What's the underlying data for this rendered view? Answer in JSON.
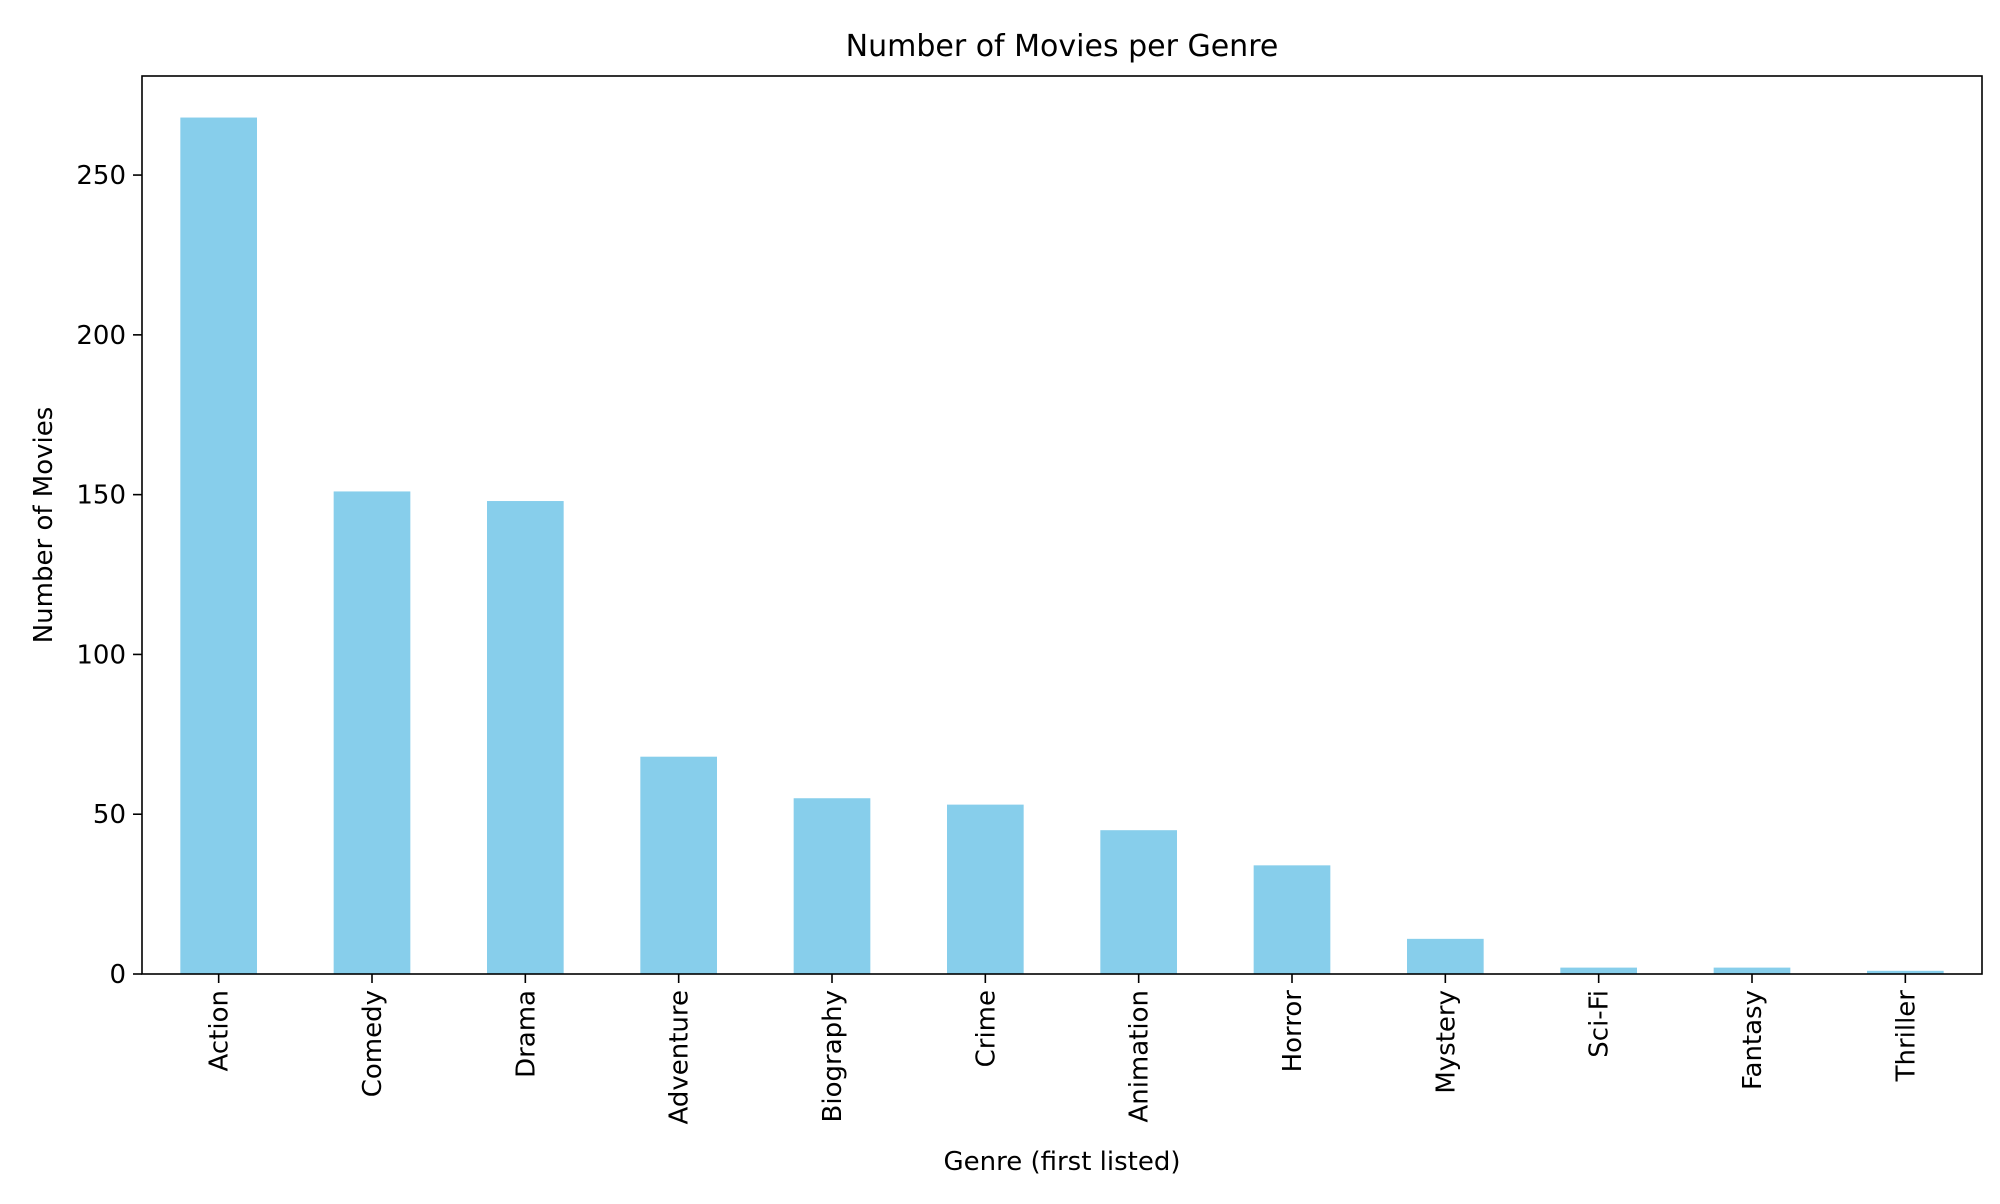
{
  "chart_data": {
    "type": "bar",
    "title": "Number of Movies per Genre",
    "xlabel": "Genre (first listed)",
    "ylabel": "Number of Movies",
    "categories": [
      "Action",
      "Comedy",
      "Drama",
      "Adventure",
      "Biography",
      "Crime",
      "Animation",
      "Horror",
      "Mystery",
      "Sci-Fi",
      "Fantasy",
      "Thriller"
    ],
    "values": [
      268,
      151,
      148,
      68,
      55,
      53,
      45,
      34,
      11,
      2,
      2,
      1
    ],
    "ylim": [
      0,
      281
    ],
    "yticks": [
      0,
      50,
      100,
      150,
      200,
      250
    ],
    "grid": false,
    "legend": "none",
    "bar_color": "#87ceeb"
  }
}
